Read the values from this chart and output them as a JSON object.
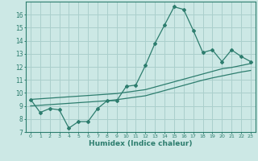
{
  "x": [
    0,
    1,
    2,
    3,
    4,
    5,
    6,
    7,
    8,
    9,
    10,
    11,
    12,
    13,
    14,
    15,
    16,
    17,
    18,
    19,
    20,
    21,
    22,
    23
  ],
  "y_main": [
    9.5,
    8.5,
    8.8,
    8.7,
    7.3,
    7.8,
    7.8,
    8.8,
    9.4,
    9.4,
    10.5,
    10.6,
    12.1,
    13.8,
    15.2,
    16.6,
    16.4,
    14.8,
    13.1,
    13.3,
    12.4,
    13.3,
    12.8,
    12.4
  ],
  "y_line1": [
    9.5,
    9.55,
    9.6,
    9.65,
    9.7,
    9.75,
    9.8,
    9.85,
    9.9,
    9.95,
    10.05,
    10.15,
    10.25,
    10.45,
    10.65,
    10.85,
    11.05,
    11.25,
    11.45,
    11.65,
    11.85,
    11.95,
    12.1,
    12.25
  ],
  "y_line2": [
    9.0,
    9.05,
    9.1,
    9.15,
    9.2,
    9.25,
    9.3,
    9.35,
    9.4,
    9.48,
    9.58,
    9.68,
    9.78,
    9.98,
    10.18,
    10.38,
    10.58,
    10.78,
    10.98,
    11.15,
    11.3,
    11.45,
    11.6,
    11.72
  ],
  "color": "#2d7d6e",
  "bg_color": "#cce8e5",
  "grid_color": "#aacfcc",
  "ylim": [
    7,
    17
  ],
  "yticks": [
    7,
    8,
    9,
    10,
    11,
    12,
    13,
    14,
    15,
    16
  ],
  "xlabel": "Humidex (Indice chaleur)"
}
